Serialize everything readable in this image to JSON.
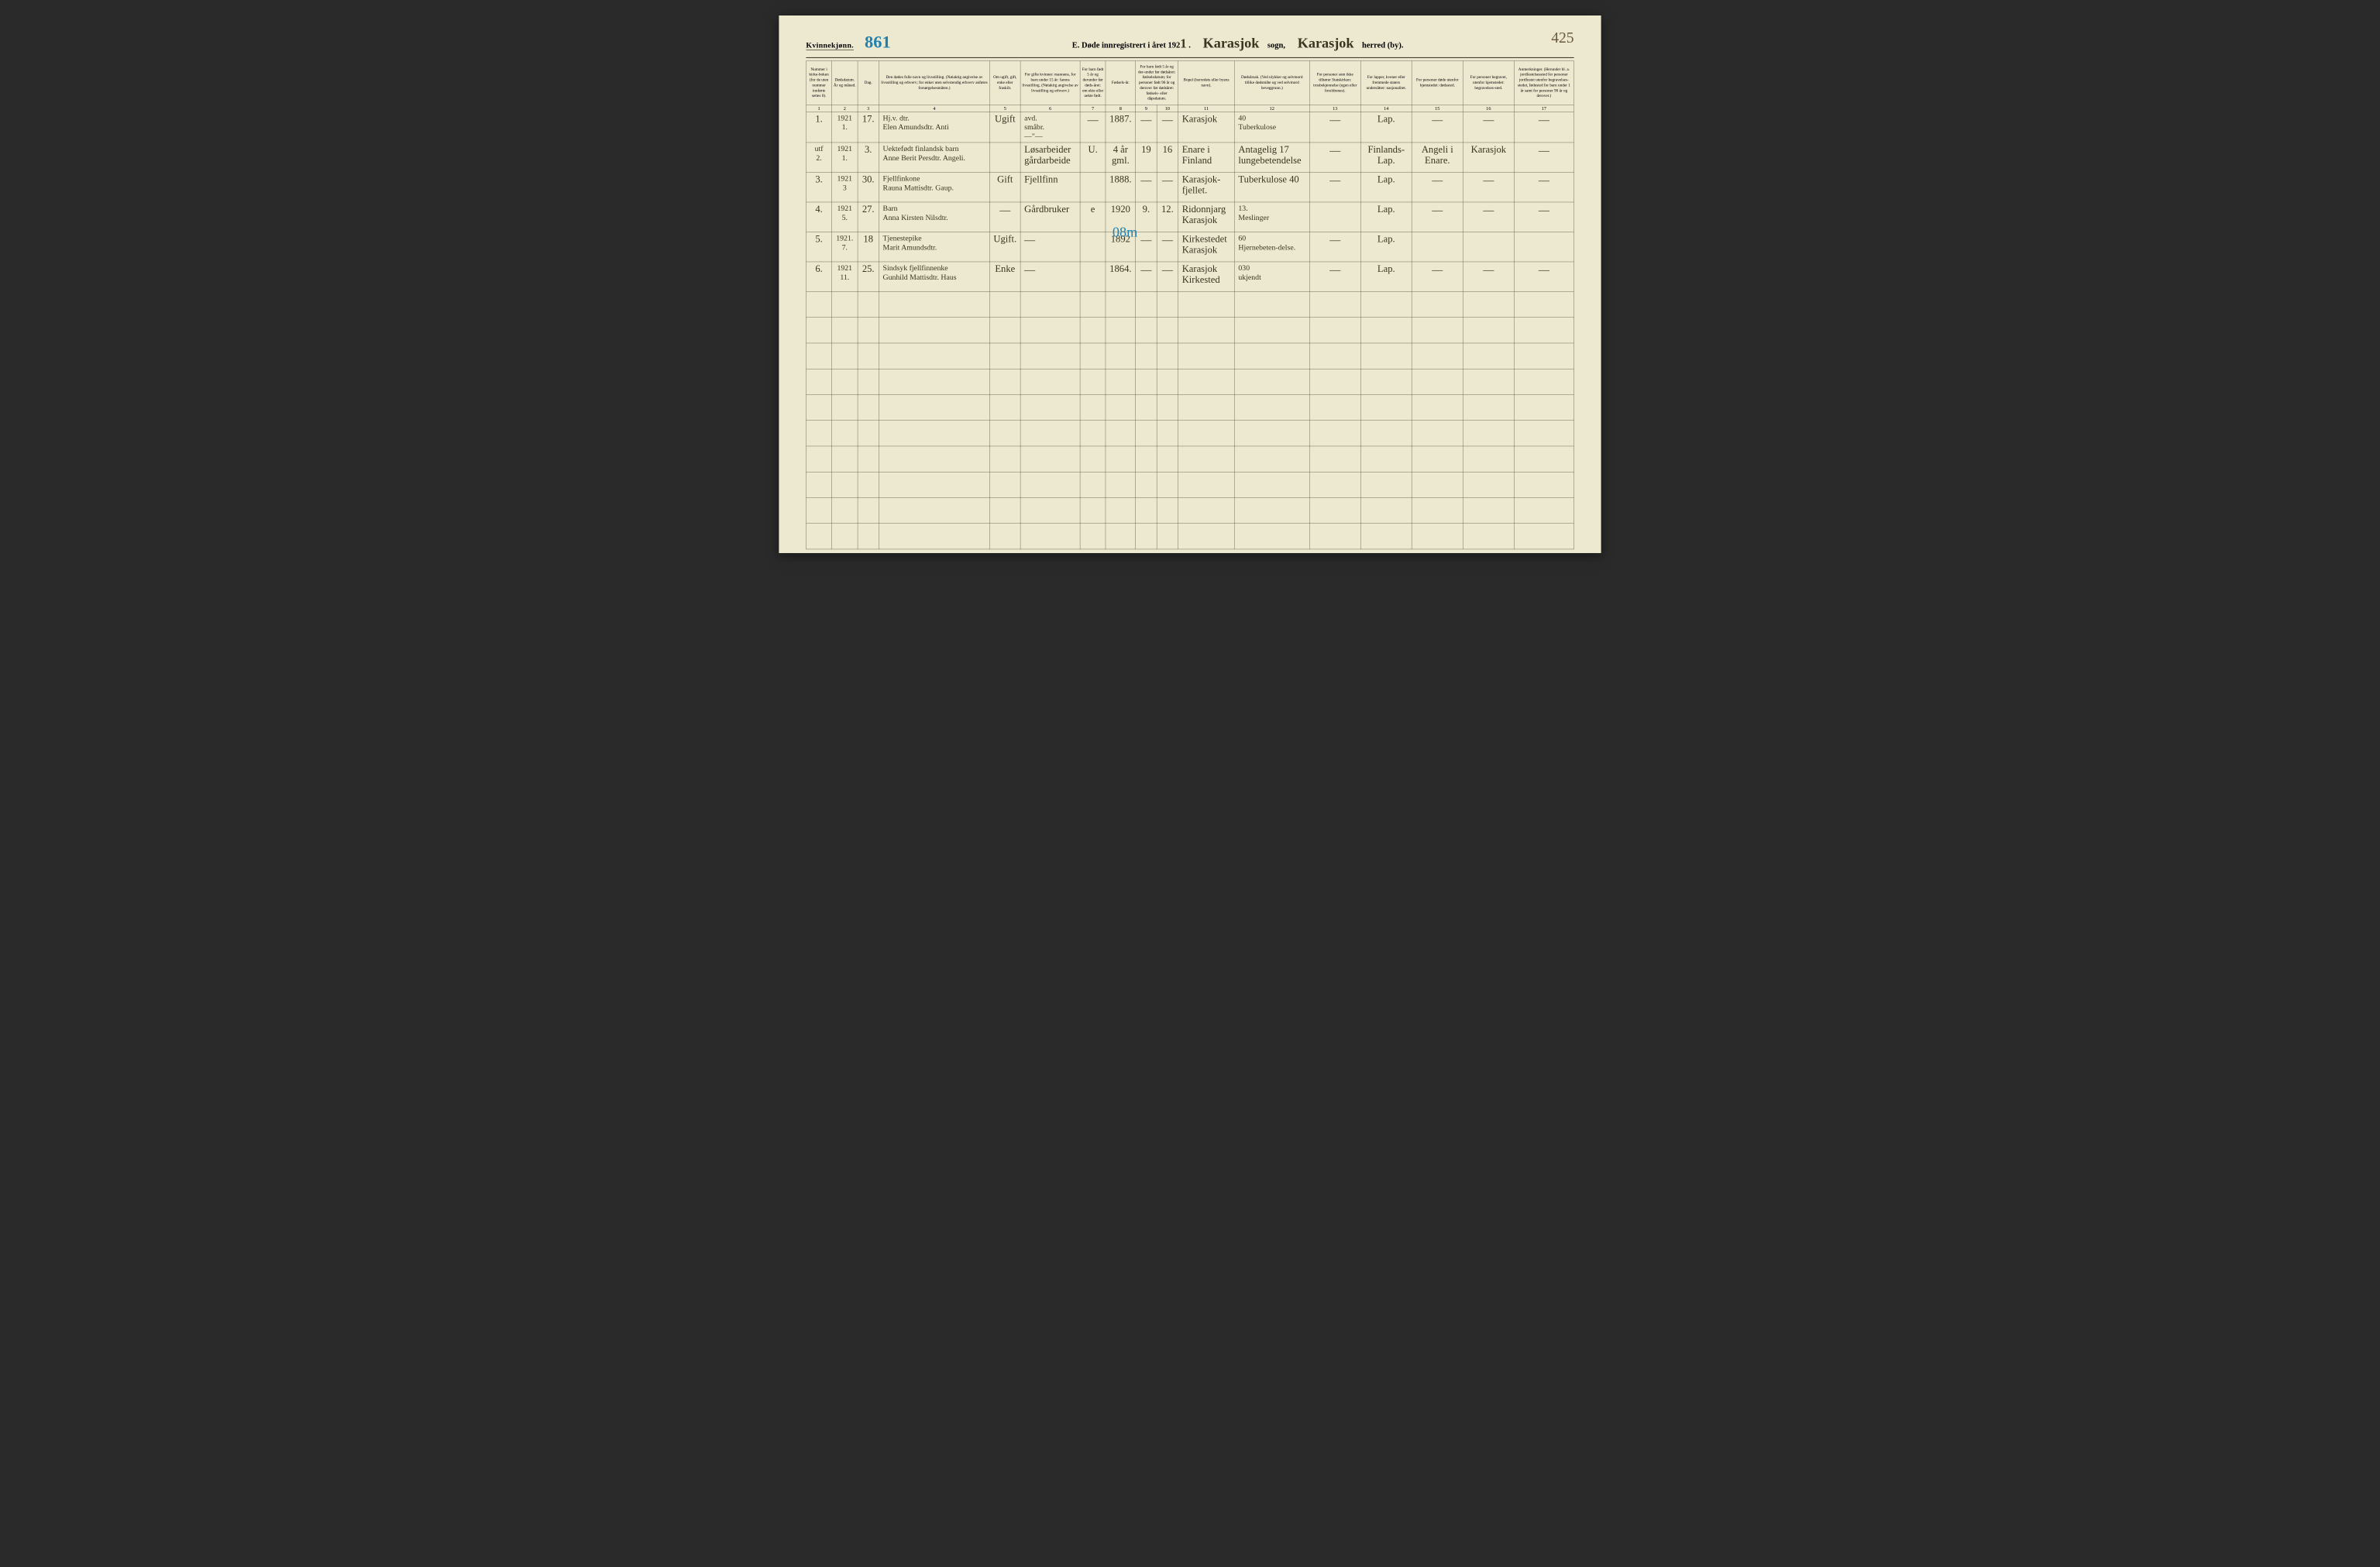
{
  "header": {
    "gender_label": "Kvinnekjønn.",
    "page_folio": "861",
    "title_prefix": "E.  Døde innregistrert i året 192",
    "year_suffix": "1",
    "sogn_value": "Karasjok",
    "sogn_label": "sogn,",
    "herred_value": "Karasjok",
    "herred_label": "herred (by).",
    "page_number": "425"
  },
  "columns": [
    {
      "num": "1",
      "label": "Nummer i kirke-boken (for de uten nummer innførte settes 0).",
      "w": "3%"
    },
    {
      "num": "2",
      "label": "Dødsdatum.\nÅr og måned.",
      "w": "3%"
    },
    {
      "num": "3",
      "label": "Dag.",
      "w": "2.5%"
    },
    {
      "num": "4",
      "label": "Den dødes fulle navn og livsstilling.\n(Nøiaktig angivelse av livsstilling og erhverv; for enker uten selvstendig erhverv anføres forsørgelsesmåten.)",
      "w": "13%"
    },
    {
      "num": "5",
      "label": "Om ugift, gift, enke eller fraskilt.",
      "w": "3.5%"
    },
    {
      "num": "6",
      "label": "For gifte kvinner: mannens, for barn under 15 år: farens livsstilling. (Nøiaktig angivelse av livsstilling og erhverv.)",
      "w": "7%"
    },
    {
      "num": "7",
      "label": "For barn født 5 år og derunder før døds-året: om ekte eller uekte født.",
      "w": "3%"
    },
    {
      "num": "8",
      "label": "Fødsels-år.",
      "w": "3.5%"
    },
    {
      "num": "9",
      "label": "Måned.",
      "w": "2.5%"
    },
    {
      "num": "10",
      "label": "Dag.",
      "w": "2.5%"
    },
    {
      "num": "11",
      "label": "Bopel (herredets eller byens navn).",
      "w": "6%"
    },
    {
      "num": "12",
      "label": "Dødsårsak. (Ved ulykker og selvmord tillike dødsmåte og ved selvmord beveggrunn.)",
      "w": "7%"
    },
    {
      "num": "13",
      "label": "For personer som ikke tilhører Statskirken: trosbekjennelse (egen eller foreldrenes).",
      "w": "6%"
    },
    {
      "num": "14",
      "label": "For lapper, kvener eller fremmede staters undersåtter: nasjonalitet.",
      "w": "6%"
    },
    {
      "num": "15",
      "label": "For personer døde utenfor hjemstedet: dødssted.",
      "w": "6%"
    },
    {
      "num": "16",
      "label": "For personer begravet, utenfor hjemstedet: begravelses-sted.",
      "w": "6%"
    },
    {
      "num": "17",
      "label": "Anmerkninger. (Herunder bl. a. jordfestelsessted for personer jordfestet utenfor begravelses-stedet, fødested for barn under 1 år samt for personer 90 år og derover.)",
      "w": "7%"
    }
  ],
  "col910_header": "For barn født 5 år og der-under før dødsåret: fødselsdatum; for personer født 90 år og derover før dødsåret: fødsels- eller dåpsdatum.",
  "rows": [
    {
      "n": "1.",
      "ym": "1921\n1.",
      "d": "17.",
      "name": "Hj.v. dtr.\nElen Amundsdtr. Anti",
      "stat": "Ugift",
      "spouse": "avd.\nsmåbr.\n—\"—",
      "ekte": "—",
      "fy": "1887.",
      "fm": "—",
      "fd": "—",
      "bopel": "Karasjok",
      "cause": "40\nTuberkulose",
      "rel": "—",
      "nat": "Lap.",
      "dsted": "—",
      "bsted": "—",
      "anm": "—"
    },
    {
      "n": "utf\n2.",
      "ym": "1921\n1.",
      "d": "3.",
      "name": "Uektefødt finlandsk barn\nAnne Berit Persdtr. Angeli.",
      "stat": "",
      "spouse": "Løsarbeider gårdarbeide",
      "ekte": "U.",
      "fy": "4 år gml.",
      "fm": "19",
      "fd": "16",
      "bopel": "Enare i Finland",
      "cause": "Antagelig 17 lungebetendelse",
      "rel": "—",
      "nat": "Finlands-Lap.",
      "dsted": "Angeli i Enare.",
      "bsted": "Karasjok",
      "anm": "—"
    },
    {
      "n": "3.",
      "ym": "1921\n3",
      "d": "30.",
      "name": "Fjellfinkone\nRauna Mattisdtr. Gaup.",
      "stat": "Gift",
      "spouse": "Fjellfinn",
      "ekte": "",
      "fy": "1888.",
      "fm": "—",
      "fd": "—",
      "bopel": "Karasjok-fjellet.",
      "cause": "Tuberkulose 40",
      "rel": "—",
      "nat": "Lap.",
      "dsted": "—",
      "bsted": "—",
      "anm": "—"
    },
    {
      "n": "4.",
      "ym": "1921\n5.",
      "d": "27.",
      "name": "Barn\nAnna Kirsten Nilsdtr.",
      "stat": "—",
      "spouse": "Gårdbruker",
      "ekte": "e",
      "fy": "1920",
      "fm": "9.",
      "fd": "12.",
      "bopel": "Ridonnjarg Karasjok",
      "cause": "13.\nMeslinger",
      "rel": "",
      "nat": "Lap.",
      "dsted": "—",
      "bsted": "—",
      "anm": "—"
    },
    {
      "n": "5.",
      "ym": "1921.\n7.",
      "d": "18",
      "name": "Tjenestepike\nMarit Amundsdtr.",
      "stat": "Ugift.",
      "spouse": "—",
      "ekte": "",
      "fy": "1892",
      "fm": "—",
      "fd": "—",
      "bopel": "Kirkestedet Karasjok",
      "cause": "60\nHjernebeten-delse.",
      "rel": "—",
      "nat": "Lap.",
      "dsted": "",
      "bsted": "",
      "anm": ""
    },
    {
      "n": "6.",
      "ym": "1921\n11.",
      "d": "25.",
      "name": "Sindsyk fjellfinnenke\nGunhild Mattisdtr. Haus",
      "stat": "Enke",
      "spouse": "—",
      "ekte": "",
      "fy": "1864.",
      "fm": "—",
      "fd": "—",
      "bopel": "Karasjok Kirkested",
      "cause": "030\nukjendt",
      "rel": "—",
      "nat": "Lap.",
      "dsted": "—",
      "bsted": "—",
      "anm": "—"
    }
  ],
  "blue_annotation": "08m",
  "colors": {
    "paper": "#ede8d0",
    "ink": "#3a3520",
    "blue": "#2080b0",
    "line": "#3a3a2a"
  }
}
